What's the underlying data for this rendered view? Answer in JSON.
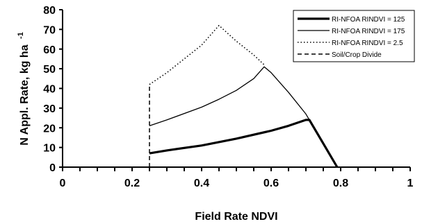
{
  "chart_data": {
    "type": "line",
    "title": "",
    "xlabel": "Field Rate NDVI",
    "ylabel_main": "N Appl. Rate, kg ha",
    "ylabel_sup": "-1",
    "xlim": [
      0,
      1
    ],
    "ylim": [
      0,
      80
    ],
    "x_ticks": [
      "0",
      "0.2",
      "0.4",
      "0.6",
      "0.8",
      "1"
    ],
    "y_ticks": [
      "0",
      "10",
      "20",
      "30",
      "40",
      "50",
      "60",
      "70",
      "80"
    ],
    "legend_position": "top-right",
    "series": [
      {
        "name": "RI-NFOA RINDVI = 125",
        "style": "thick-solid",
        "color": "#000000",
        "points": [
          [
            0.25,
            7.0
          ],
          [
            0.3,
            8.5
          ],
          [
            0.4,
            11.0
          ],
          [
            0.5,
            14.5
          ],
          [
            0.6,
            18.5
          ],
          [
            0.65,
            21.0
          ],
          [
            0.7,
            24.0
          ],
          [
            0.71,
            24.0
          ],
          [
            0.75,
            12.0
          ],
          [
            0.79,
            0.0
          ]
        ]
      },
      {
        "name": "RI-NFOA RINDVI = 175",
        "style": "thin-solid",
        "color": "#000000",
        "points": [
          [
            0.25,
            21.0
          ],
          [
            0.3,
            24.0
          ],
          [
            0.4,
            30.5
          ],
          [
            0.45,
            34.5
          ],
          [
            0.5,
            39.0
          ],
          [
            0.55,
            45.0
          ],
          [
            0.58,
            51.0
          ],
          [
            0.6,
            48.0
          ],
          [
            0.65,
            38.0
          ],
          [
            0.7,
            27.0
          ],
          [
            0.75,
            12.0
          ],
          [
            0.79,
            0.0
          ]
        ]
      },
      {
        "name": "RI-NFOA RINDVI = 2.5",
        "style": "dotted",
        "color": "#000000",
        "points": [
          [
            0.25,
            42.0
          ],
          [
            0.3,
            48.0
          ],
          [
            0.35,
            55.0
          ],
          [
            0.4,
            62.0
          ],
          [
            0.45,
            72.0
          ],
          [
            0.5,
            64.0
          ],
          [
            0.55,
            57.0
          ],
          [
            0.58,
            52.0
          ]
        ]
      },
      {
        "name": "Soil/Crop Divide",
        "style": "dashed",
        "color": "#000000",
        "points": [
          [
            0.25,
            0.0
          ],
          [
            0.25,
            42.0
          ]
        ]
      }
    ]
  }
}
